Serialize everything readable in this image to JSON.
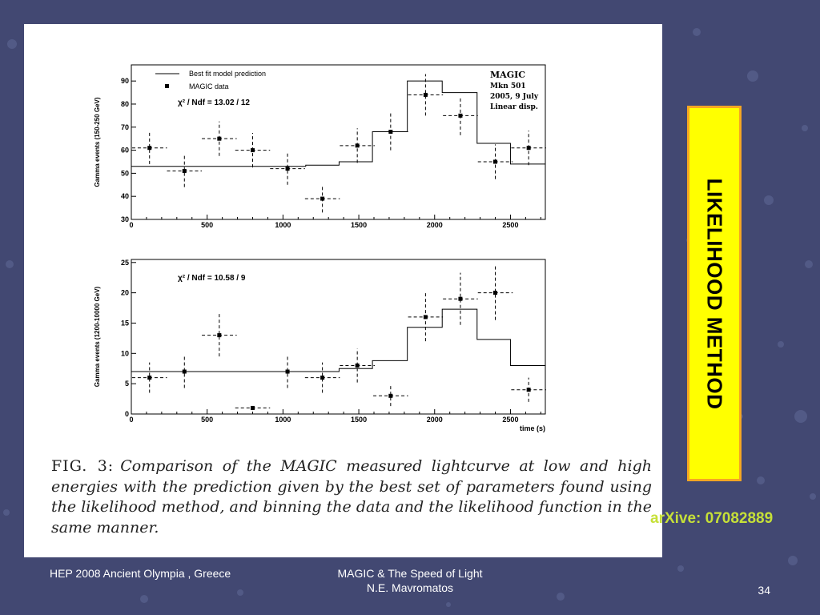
{
  "slide": {
    "side_title": "LIKELIHOOD METHOD",
    "arxiv": "arXive: 07082889",
    "footer_left": "HEP 2008 Ancient Olympia , Greece",
    "footer_center_line1": "MAGIC & The Speed of Light",
    "footer_center_line2": "N.E. Mavromatos",
    "page_number": "34",
    "colors": {
      "background": "#424872",
      "box_fill": "#ffff00",
      "box_border": "#f5a623",
      "arxiv_text": "#c6e038"
    }
  },
  "caption": {
    "fig_label": "FIG. 3:",
    "text": "Comparison of the MAGIC measured lightcurve at low and high energies with the prediction given by the best set of parameters found using the likelihood method, and binning the data and the likelihood function in the same manner."
  },
  "chart_data": [
    {
      "type": "step+errorbar",
      "ylabel": "Gamma events (150-250 GeV)",
      "xlabel": "",
      "xlim": [
        0,
        2730
      ],
      "ylim": [
        30,
        97
      ],
      "xticks": [
        0,
        500,
        1000,
        1500,
        2000,
        2500
      ],
      "yticks": [
        30,
        40,
        50,
        60,
        70,
        80,
        90
      ],
      "legend": [
        {
          "label": "Best fit model prediction",
          "style": "line"
        },
        {
          "label": "MAGIC data",
          "style": "marker"
        }
      ],
      "chi2": "χ² / Ndf = 13.02 / 12",
      "info": [
        "MAGIC",
        "Mkn 501",
        "2005, 9 July",
        "Linear disp."
      ],
      "model_steps": [
        {
          "x0": 0,
          "x1": 1150,
          "y": 53
        },
        {
          "x0": 1150,
          "x1": 1370,
          "y": 53.5
        },
        {
          "x0": 1370,
          "x1": 1590,
          "y": 55
        },
        {
          "x0": 1590,
          "x1": 1820,
          "y": 68
        },
        {
          "x0": 1820,
          "x1": 2050,
          "y": 90
        },
        {
          "x0": 2050,
          "x1": 2280,
          "y": 85
        },
        {
          "x0": 2280,
          "x1": 2500,
          "y": 63
        },
        {
          "x0": 2500,
          "x1": 2730,
          "y": 54
        }
      ],
      "points": [
        {
          "x": 120,
          "y": 61,
          "xerr": 115,
          "yerr": 7
        },
        {
          "x": 350,
          "y": 51,
          "xerr": 115,
          "yerr": 7
        },
        {
          "x": 580,
          "y": 65,
          "xerr": 115,
          "yerr": 7.5
        },
        {
          "x": 800,
          "y": 60,
          "xerr": 115,
          "yerr": 7.5
        },
        {
          "x": 1030,
          "y": 52,
          "xerr": 115,
          "yerr": 7
        },
        {
          "x": 1260,
          "y": 39,
          "xerr": 115,
          "yerr": 6
        },
        {
          "x": 1490,
          "y": 62,
          "xerr": 115,
          "yerr": 7.5
        },
        {
          "x": 1710,
          "y": 68,
          "xerr": 115,
          "yerr": 8
        },
        {
          "x": 1940,
          "y": 84,
          "xerr": 115,
          "yerr": 9
        },
        {
          "x": 2170,
          "y": 75,
          "xerr": 115,
          "yerr": 8.5
        },
        {
          "x": 2400,
          "y": 55,
          "xerr": 115,
          "yerr": 7.5
        },
        {
          "x": 2620,
          "y": 61,
          "xerr": 115,
          "yerr": 7.5
        }
      ]
    },
    {
      "type": "step+errorbar",
      "ylabel": "Gamma events (1200-10000 GeV)",
      "xlabel": "time (s)",
      "xlim": [
        0,
        2730
      ],
      "ylim": [
        0,
        25.5
      ],
      "xticks": [
        0,
        500,
        1000,
        1500,
        2000,
        2500
      ],
      "yticks": [
        0,
        5,
        10,
        15,
        20,
        25
      ],
      "chi2": "χ² / Ndf = 10.58 / 9",
      "model_steps": [
        {
          "x0": 0,
          "x1": 1370,
          "y": 7
        },
        {
          "x0": 1370,
          "x1": 1590,
          "y": 7.5
        },
        {
          "x0": 1590,
          "x1": 1820,
          "y": 8.8
        },
        {
          "x0": 1820,
          "x1": 2050,
          "y": 14.3
        },
        {
          "x0": 2050,
          "x1": 2280,
          "y": 17.3
        },
        {
          "x0": 2280,
          "x1": 2500,
          "y": 12.3
        },
        {
          "x0": 2500,
          "x1": 2730,
          "y": 8
        }
      ],
      "points": [
        {
          "x": 120,
          "y": 6,
          "xerr": 115,
          "yerr": 2.5
        },
        {
          "x": 350,
          "y": 7,
          "xerr": 115,
          "yerr": 2.7
        },
        {
          "x": 580,
          "y": 13,
          "xerr": 115,
          "yerr": 3.5
        },
        {
          "x": 800,
          "y": 1,
          "xerr": 115,
          "yerr": 0.3
        },
        {
          "x": 1030,
          "y": 7,
          "xerr": 115,
          "yerr": 2.7
        },
        {
          "x": 1260,
          "y": 6,
          "xerr": 115,
          "yerr": 2.5
        },
        {
          "x": 1490,
          "y": 8,
          "xerr": 115,
          "yerr": 2.8
        },
        {
          "x": 1710,
          "y": 3,
          "xerr": 115,
          "yerr": 1.7
        },
        {
          "x": 1940,
          "y": 16,
          "xerr": 115,
          "yerr": 4
        },
        {
          "x": 2170,
          "y": 19,
          "xerr": 115,
          "yerr": 4.3
        },
        {
          "x": 2400,
          "y": 20,
          "xerr": 115,
          "yerr": 4.5
        },
        {
          "x": 2620,
          "y": 4,
          "xerr": 115,
          "yerr": 2
        }
      ]
    }
  ]
}
